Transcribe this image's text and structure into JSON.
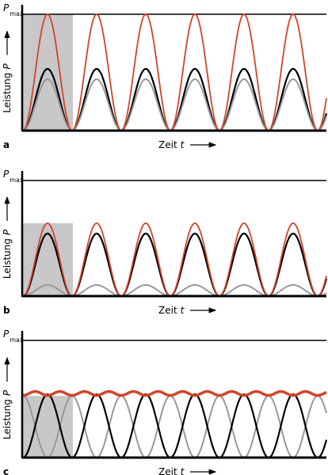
{
  "panels": [
    {
      "label": "a",
      "pmax": {
        "symbol": "P",
        "subscript": "max"
      },
      "y_axis": {
        "text": "Leistung",
        "symbol": "P"
      },
      "x_axis": {
        "text": "Zeit",
        "symbol": "t"
      }
    },
    {
      "label": "b",
      "pmax": {
        "symbol": "P",
        "subscript": "max"
      },
      "y_axis": {
        "text": "Leistung",
        "symbol": "P"
      },
      "x_axis": {
        "text": "Zeit",
        "symbol": "t"
      }
    },
    {
      "label": "c",
      "pmax": {
        "symbol": "P",
        "subscript": "max"
      },
      "y_axis": {
        "text": "Leistung",
        "symbol": "P"
      },
      "x_axis": {
        "text": "Zeit",
        "symbol": "t"
      }
    }
  ]
}
